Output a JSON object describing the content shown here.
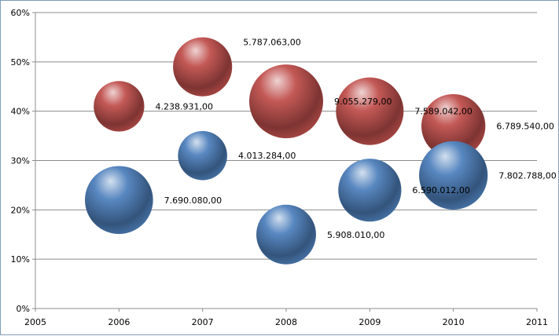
{
  "chart_data": {
    "type": "bubble",
    "title": "",
    "xlabel": "",
    "ylabel": "",
    "xlim": [
      2005,
      2011
    ],
    "ylim": [
      0,
      60
    ],
    "x_ticks": [
      "2005",
      "2006",
      "2007",
      "2008",
      "2009",
      "2010",
      "2011"
    ],
    "y_ticks": [
      "0%",
      "10%",
      "20%",
      "30%",
      "40%",
      "50%",
      "60%"
    ],
    "grid": true,
    "legend": "none",
    "series": [
      {
        "color": "#c0504d",
        "points": [
          {
            "x": 2006,
            "y": 41,
            "size": 4238931,
            "label": "4.238.931,00"
          },
          {
            "x": 2007,
            "y": 49,
            "size": 5787063,
            "label": "5.787.063,00"
          },
          {
            "x": 2008,
            "y": 42,
            "size": 9055279,
            "label": "9.055.279,00"
          },
          {
            "x": 2009,
            "y": 40,
            "size": 7589042,
            "label": "7.589.042,00"
          },
          {
            "x": 2010,
            "y": 37,
            "size": 6789540,
            "label": "6.789.540,00"
          }
        ]
      },
      {
        "color": "#4f81bd",
        "points": [
          {
            "x": 2006,
            "y": 22,
            "size": 7690080,
            "label": "7.690.080,00"
          },
          {
            "x": 2007,
            "y": 31,
            "size": 4013284,
            "label": "4.013.284,00"
          },
          {
            "x": 2008,
            "y": 15,
            "size": 5908010,
            "label": "5.908.010,00"
          },
          {
            "x": 2009,
            "y": 24,
            "size": 6590012,
            "label": "6.590.012,00"
          },
          {
            "x": 2010,
            "y": 27,
            "size": 7802788,
            "label": "7.802.788,00"
          }
        ]
      }
    ]
  }
}
